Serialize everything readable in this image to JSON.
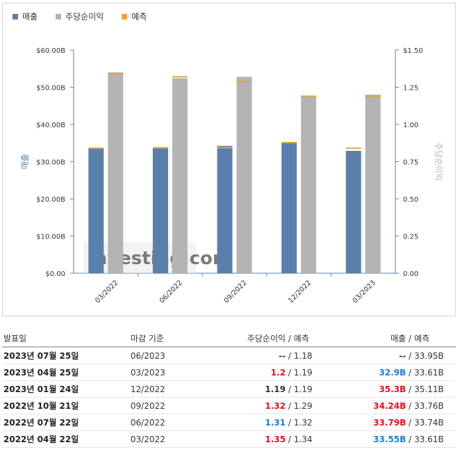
{
  "legend": [
    {
      "label": "매출",
      "color": "#5b7fab"
    },
    {
      "label": "주당순이익",
      "color": "#b4b4b4"
    },
    {
      "label": "예측",
      "color": "#e6a53a"
    }
  ],
  "chart_data": {
    "type": "bar",
    "categories": [
      "03/2022",
      "06/2022",
      "09/2022",
      "12/2022",
      "03/2023"
    ],
    "series": [
      {
        "name": "매출",
        "axis": "left",
        "values": [
          33.55,
          33.79,
          34.24,
          35.3,
          32.9
        ],
        "forecast": [
          33.61,
          33.74,
          33.76,
          35.11,
          33.61
        ],
        "color": "#5b7fab"
      },
      {
        "name": "주당순이익",
        "axis": "right",
        "values": [
          1.35,
          1.31,
          1.32,
          1.19,
          1.2
        ],
        "forecast": [
          1.34,
          1.32,
          1.29,
          1.19,
          1.19
        ],
        "color": "#b4b4b4"
      }
    ],
    "forecast_color": "#e6a53a",
    "ylabel_left": "매출",
    "ylabel_right": "주당순이익",
    "ylim_left": [
      0,
      60
    ],
    "ylim_right": [
      0,
      1.5
    ],
    "yticks_left": [
      "$0.00",
      "$10.00B",
      "$20.00B",
      "$30.00B",
      "$40.00B",
      "$50.00B",
      "$60.00B"
    ],
    "yticks_right": [
      "0.00",
      "0.25",
      "0.50",
      "0.75",
      "1.00",
      "1.25",
      "$1.50"
    ],
    "watermark": "Investing.com"
  },
  "table": {
    "headers": {
      "date": "발표일",
      "period": "마감 기준",
      "eps": "주당순이익",
      "eps_forecast": "예측",
      "revenue": "매출",
      "revenue_forecast": "예측"
    },
    "separator": "/",
    "rows": [
      {
        "date": "2023년 07월 25일",
        "period": "06/2023",
        "eps": "--",
        "eps_cls": "neu",
        "eps_forecast": "1.18",
        "revenue": "--",
        "revenue_cls": "neu",
        "revenue_forecast": "33.95B"
      },
      {
        "date": "2023년 04월 25일",
        "period": "03/2023",
        "eps": "1.2",
        "eps_cls": "neg",
        "eps_forecast": "1.19",
        "revenue": "32.9B",
        "revenue_cls": "pos",
        "revenue_forecast": "33.61B"
      },
      {
        "date": "2023년 01월 24일",
        "period": "12/2022",
        "eps": "1.19",
        "eps_cls": "neu",
        "eps_forecast": "1.19",
        "revenue": "35.3B",
        "revenue_cls": "neg",
        "revenue_forecast": "35.11B"
      },
      {
        "date": "2022년 10월 21일",
        "period": "09/2022",
        "eps": "1.32",
        "eps_cls": "neg",
        "eps_forecast": "1.29",
        "revenue": "34.24B",
        "revenue_cls": "neg",
        "revenue_forecast": "33.76B"
      },
      {
        "date": "2022년 07월 22일",
        "period": "06/2022",
        "eps": "1.31",
        "eps_cls": "pos",
        "eps_forecast": "1.32",
        "revenue": "33.79B",
        "revenue_cls": "neg",
        "revenue_forecast": "33.74B"
      },
      {
        "date": "2022년 04월 22일",
        "period": "03/2022",
        "eps": "1.35",
        "eps_cls": "neg",
        "eps_forecast": "1.34",
        "revenue": "33.55B",
        "revenue_cls": "pos",
        "revenue_forecast": "33.61B"
      }
    ]
  }
}
